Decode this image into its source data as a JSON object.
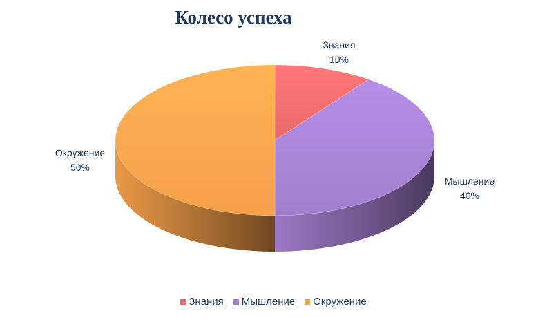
{
  "chart_data": {
    "type": "pie",
    "title": "Колесо успеха",
    "categories": [
      "Знания",
      "Мышление",
      "Окружение"
    ],
    "values": [
      10,
      40,
      50
    ],
    "value_labels": [
      "10%",
      "40%",
      "50%"
    ],
    "colors": [
      "#e86a6a",
      "#a27fce",
      "#f5a04a"
    ],
    "legend_position": "bottom",
    "style": "3d"
  }
}
